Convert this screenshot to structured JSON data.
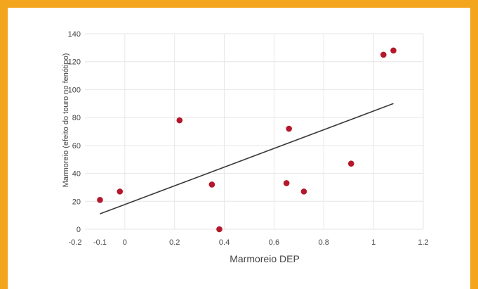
{
  "chart_data": {
    "type": "scatter",
    "title": "",
    "xlabel": "Marmoreio DEP",
    "ylabel": "Marmoreio (efeito do touro no fenótipo)",
    "xlim": [
      -0.2,
      1.2
    ],
    "ylim": [
      0,
      140
    ],
    "xticks": [
      "-0.2",
      "-0.1",
      "0",
      "0.2",
      "0.4",
      "0.6",
      "0.8",
      "1",
      "1.2"
    ],
    "xtick_values": [
      -0.2,
      -0.1,
      0,
      0.2,
      0.4,
      0.6,
      0.8,
      1.0,
      1.2
    ],
    "yticks": [
      "0",
      "20",
      "40",
      "60",
      "80",
      "100",
      "120",
      "140"
    ],
    "ytick_values": [
      0,
      20,
      40,
      60,
      80,
      100,
      120,
      140
    ],
    "grid": true,
    "legend": "none",
    "series": [
      {
        "color": "#b5172b",
        "points": [
          {
            "x": -0.1,
            "y": 21
          },
          {
            "x": -0.02,
            "y": 27
          },
          {
            "x": 0.22,
            "y": 78
          },
          {
            "x": 0.35,
            "y": 32
          },
          {
            "x": 0.38,
            "y": 0
          },
          {
            "x": 0.65,
            "y": 33
          },
          {
            "x": 0.66,
            "y": 72
          },
          {
            "x": 0.72,
            "y": 27
          },
          {
            "x": 0.91,
            "y": 47
          },
          {
            "x": 1.04,
            "y": 125
          },
          {
            "x": 1.08,
            "y": 128
          }
        ]
      }
    ],
    "trendline": {
      "color": "#3a3a3a",
      "x": [
        -0.1,
        1.08
      ],
      "y": [
        11,
        90
      ]
    }
  }
}
